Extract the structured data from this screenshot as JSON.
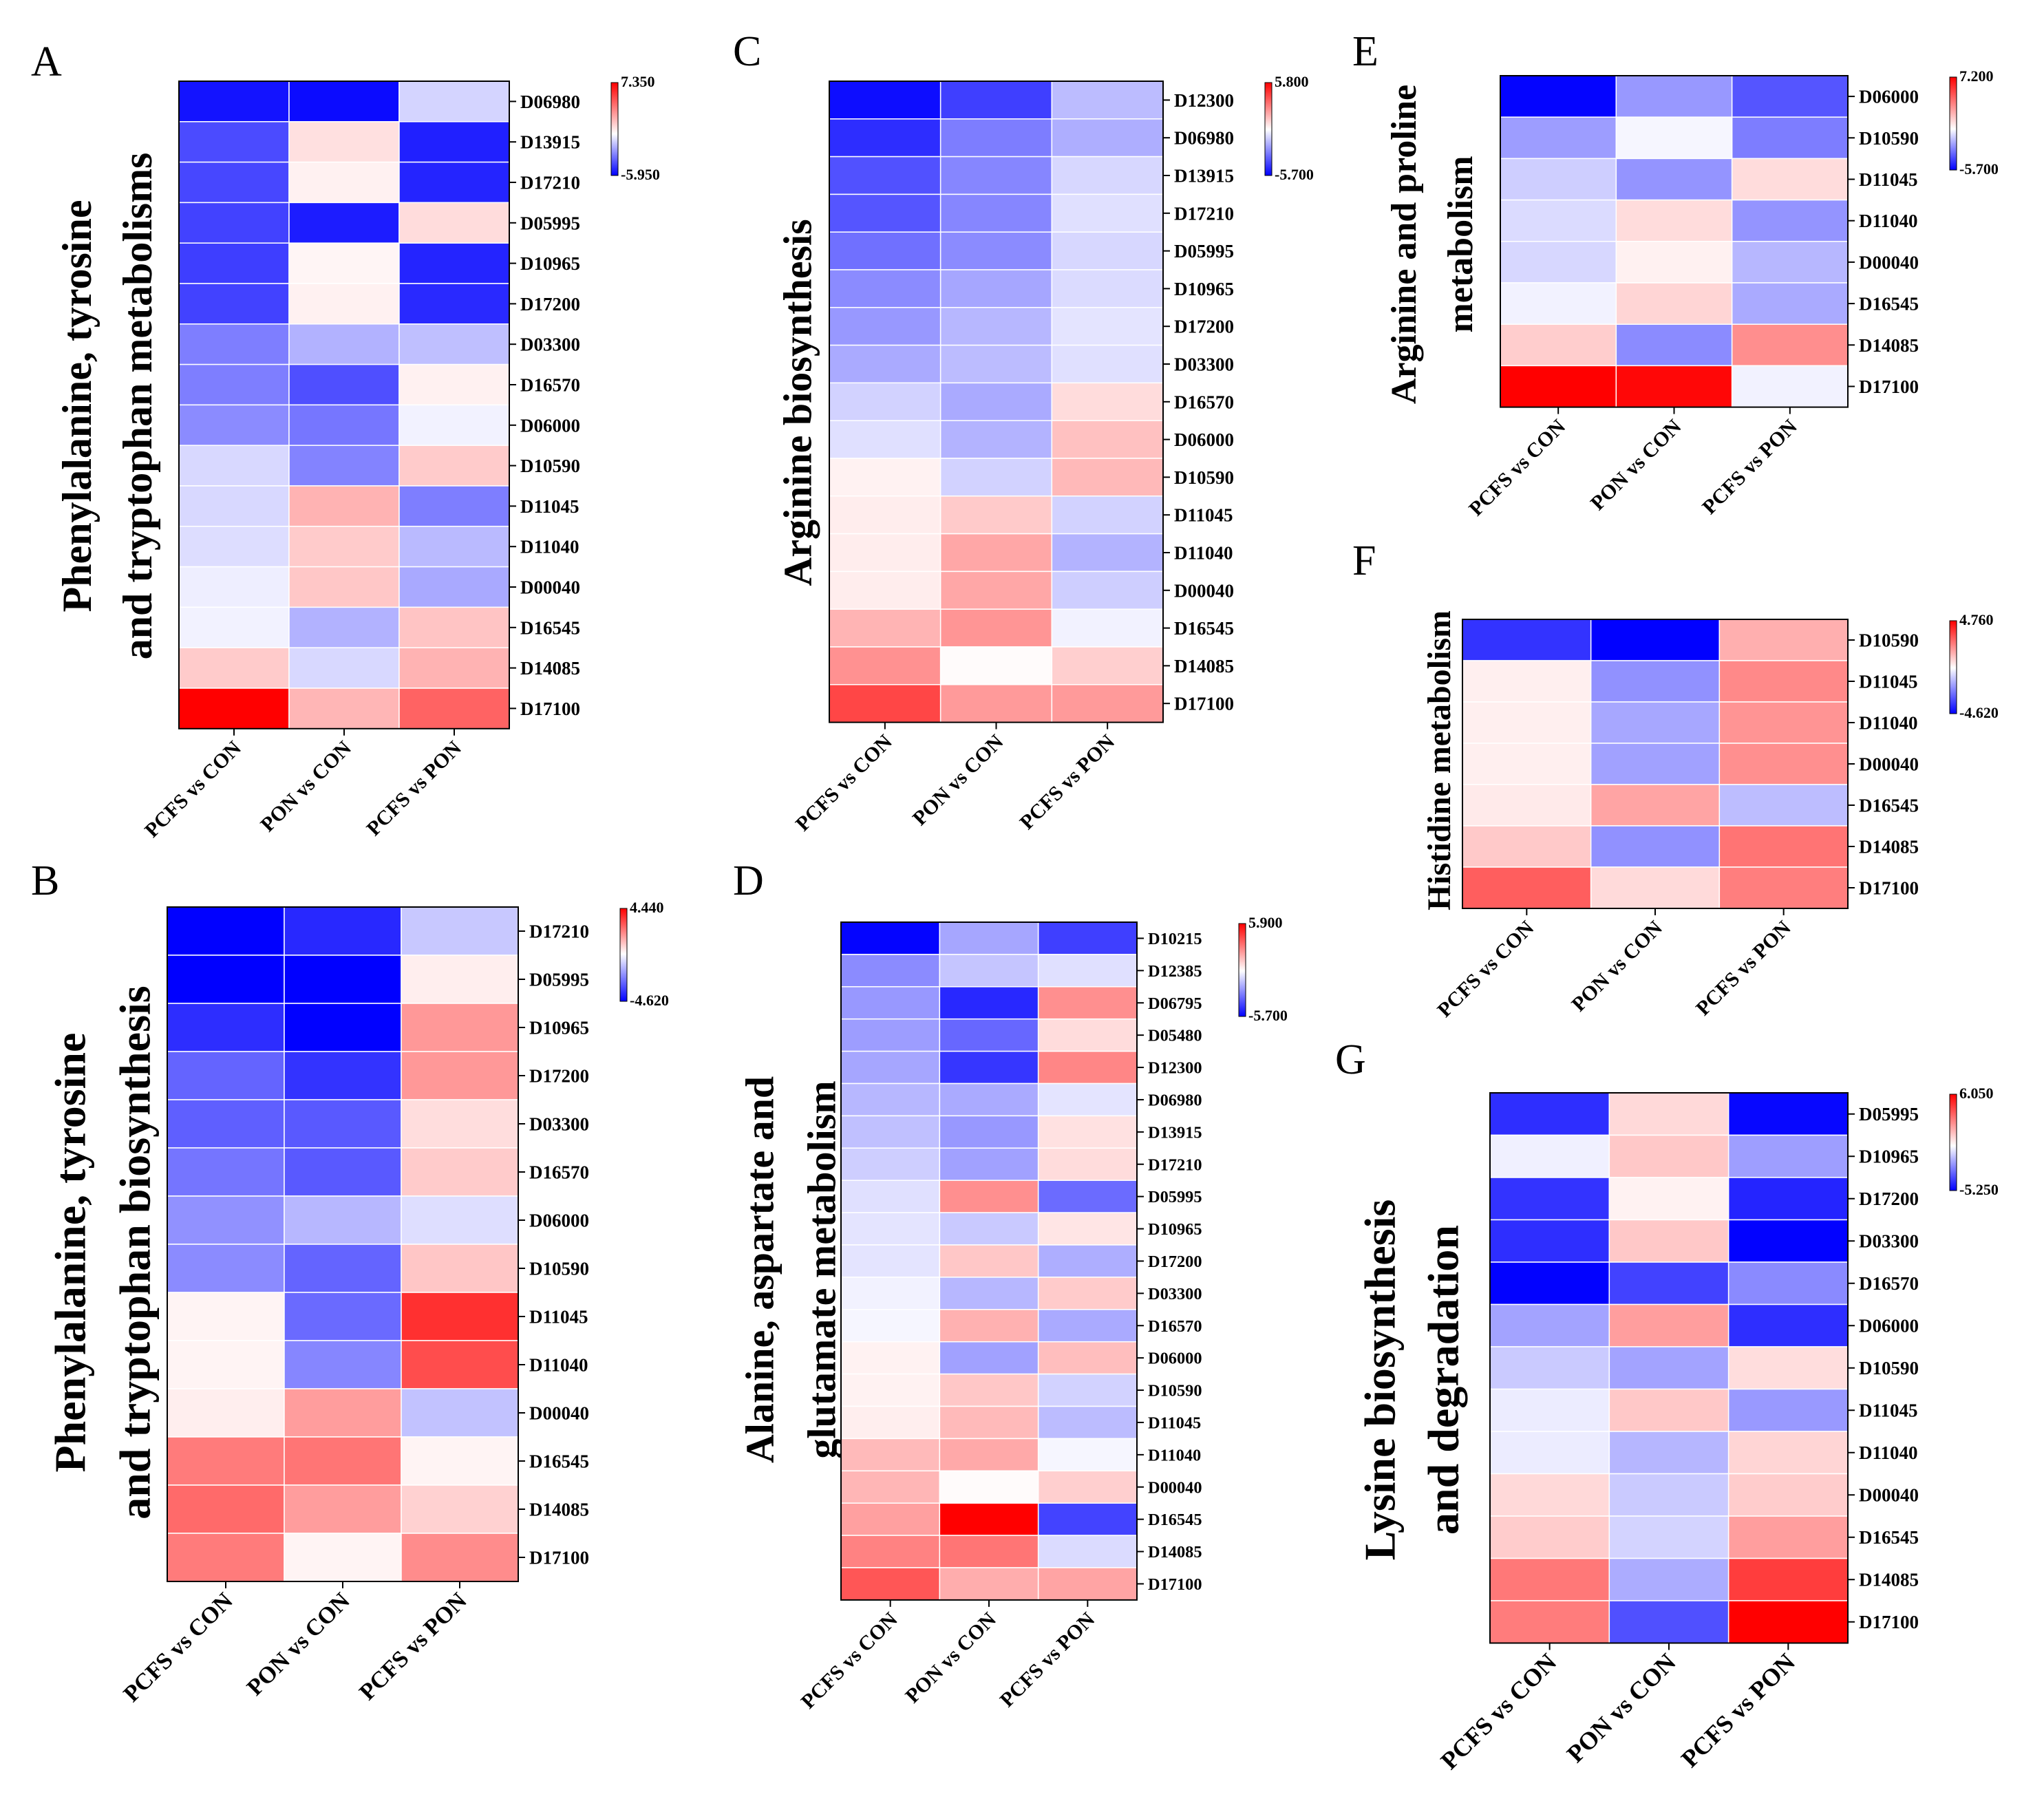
{
  "figure": {
    "note": "Seven heatmap panels comparing metabolite abundance changes"
  },
  "colors": {
    "low": "#0000ff",
    "mid": "#ffffff",
    "high": "#ff0000"
  },
  "chart_data": [
    {
      "type": "heatmap",
      "panel": "A",
      "title": "Phenylalanine, tyrosine and tryptophan metabolisms",
      "title_lines": [
        "Phenylalanine, tyrosine",
        "and tryptophan metabolisms"
      ],
      "columns": [
        "PCFS vs CON",
        "PON vs CON",
        "PCFS vs PON"
      ],
      "rows": [
        "D06980",
        "D13915",
        "D17210",
        "D05995",
        "D10965",
        "D17200",
        "D03300",
        "D16570",
        "D06000",
        "D10590",
        "D11045",
        "D11040",
        "D00040",
        "D16545",
        "D14085",
        "D17100"
      ],
      "values": [
        [
          -5.5,
          -5.7,
          -1.0
        ],
        [
          -4.2,
          0.9,
          -5.2
        ],
        [
          -4.3,
          0.4,
          -5.1
        ],
        [
          -4.4,
          -5.3,
          1.0
        ],
        [
          -4.5,
          0.3,
          -5.1
        ],
        [
          -4.4,
          0.4,
          -5.0
        ],
        [
          -3.0,
          -1.8,
          -1.5
        ],
        [
          -3.0,
          -4.1,
          0.4
        ],
        [
          -2.7,
          -3.2,
          -0.3
        ],
        [
          -0.9,
          -2.9,
          1.5
        ],
        [
          -0.9,
          2.2,
          -3.0
        ],
        [
          -0.8,
          1.5,
          -1.6
        ],
        [
          -0.4,
          1.6,
          -2.0
        ],
        [
          -0.3,
          -1.8,
          1.7
        ],
        [
          1.5,
          -0.9,
          2.2
        ],
        [
          7.35,
          2.1,
          4.5
        ]
      ],
      "colorbar": {
        "max_label": "7.350",
        "min_label": "-5.950",
        "max": 7.35,
        "min": -5.95
      }
    },
    {
      "type": "heatmap",
      "panel": "B",
      "title": "Phenylalanine, tyrosine and tryptophan biosynthesis",
      "title_lines": [
        "Phenylalanine, tyrosine",
        "and tryptophan biosynthesis"
      ],
      "columns": [
        "PCFS vs CON",
        "PON vs CON",
        "PCFS vs PON"
      ],
      "rows": [
        "D17210",
        "D05995",
        "D10965",
        "D17200",
        "D03300",
        "D16570",
        "D06000",
        "D10590",
        "D11045",
        "D11040",
        "D00040",
        "D16545",
        "D14085",
        "D17100"
      ],
      "values": [
        [
          -4.6,
          -3.9,
          -1.0
        ],
        [
          -4.62,
          -4.62,
          0.3
        ],
        [
          -3.8,
          -4.6,
          1.8
        ],
        [
          -2.8,
          -3.7,
          1.8
        ],
        [
          -2.9,
          -3.0,
          0.6
        ],
        [
          -2.5,
          -3.0,
          0.9
        ],
        [
          -2.0,
          -1.3,
          -0.6
        ],
        [
          -2.1,
          -2.8,
          1.0
        ],
        [
          0.2,
          -2.7,
          3.6
        ],
        [
          0.2,
          -2.2,
          3.1
        ],
        [
          0.3,
          1.7,
          -1.1
        ],
        [
          2.3,
          2.4,
          0.2
        ],
        [
          2.6,
          1.7,
          0.8
        ],
        [
          2.3,
          0.2,
          2.0
        ]
      ],
      "colorbar": {
        "max_label": "4.440",
        "min_label": "-4.620",
        "max": 4.44,
        "min": -4.62
      }
    },
    {
      "type": "heatmap",
      "panel": "C",
      "title": "Arginine biosynthesis",
      "title_lines": [
        "Arginine biosynthesis"
      ],
      "columns": [
        "PCFS vs CON",
        "PON vs CON",
        "PCFS vs PON"
      ],
      "rows": [
        "D12300",
        "D06980",
        "D13915",
        "D17210",
        "D05995",
        "D10965",
        "D17200",
        "D03300",
        "D16570",
        "D06000",
        "D10590",
        "D11045",
        "D11040",
        "D00040",
        "D16545",
        "D14085",
        "D17100"
      ],
      "values": [
        [
          -5.4,
          -4.3,
          -1.5
        ],
        [
          -4.7,
          -2.9,
          -1.8
        ],
        [
          -3.9,
          -2.7,
          -0.9
        ],
        [
          -3.8,
          -2.7,
          -0.7
        ],
        [
          -3.2,
          -2.6,
          -0.9
        ],
        [
          -2.6,
          -2.0,
          -0.8
        ],
        [
          -2.3,
          -1.6,
          -0.6
        ],
        [
          -1.9,
          -1.5,
          -0.7
        ],
        [
          -1.0,
          -1.9,
          0.8
        ],
        [
          -0.7,
          -1.7,
          1.4
        ],
        [
          0.3,
          -1.0,
          1.6
        ],
        [
          0.4,
          1.2,
          -1.0
        ],
        [
          0.4,
          2.0,
          -1.7
        ],
        [
          0.4,
          2.0,
          -1.1
        ],
        [
          1.7,
          2.4,
          -0.3
        ],
        [
          2.5,
          0.1,
          1.1
        ],
        [
          4.2,
          2.3,
          2.3
        ]
      ],
      "colorbar": {
        "max_label": "5.800",
        "min_label": "-5.700",
        "max": 5.8,
        "min": -5.7
      }
    },
    {
      "type": "heatmap",
      "panel": "D",
      "title": "Alanine, aspartate and glutamate metabolism",
      "title_lines": [
        "Alanine, aspartate and",
        "glutamate metabolism"
      ],
      "columns": [
        "PCFS vs CON",
        "PON vs CON",
        "PCFS vs PON"
      ],
      "rows": [
        "D10215",
        "D12385",
        "D06795",
        "D05480",
        "D12300",
        "D06980",
        "D13915",
        "D17210",
        "D05995",
        "D10965",
        "D17200",
        "D03300",
        "D16570",
        "D06000",
        "D10590",
        "D11045",
        "D11040",
        "D00040",
        "D16545",
        "D14085",
        "D17100"
      ],
      "values": [
        [
          -5.6,
          -2.0,
          -4.3
        ],
        [
          -2.6,
          -1.3,
          -0.7
        ],
        [
          -2.3,
          -4.8,
          2.6
        ],
        [
          -2.2,
          -3.4,
          0.8
        ],
        [
          -2.0,
          -4.5,
          2.8
        ],
        [
          -1.6,
          -1.9,
          -0.6
        ],
        [
          -1.4,
          -2.3,
          0.7
        ],
        [
          -1.1,
          -2.1,
          0.8
        ],
        [
          -0.7,
          2.6,
          -3.3
        ],
        [
          -0.6,
          -1.2,
          0.6
        ],
        [
          -0.6,
          1.3,
          -1.8
        ],
        [
          -0.3,
          -1.6,
          1.2
        ],
        [
          -0.2,
          1.8,
          -1.9
        ],
        [
          0.3,
          -2.1,
          1.5
        ],
        [
          0.3,
          1.3,
          -1.0
        ],
        [
          0.4,
          1.6,
          -1.5
        ],
        [
          1.6,
          2.0,
          -0.2
        ],
        [
          1.7,
          0.1,
          1.1
        ],
        [
          2.2,
          5.9,
          -4.2
        ],
        [
          2.9,
          3.2,
          -0.8
        ],
        [
          3.9,
          1.9,
          2.1
        ]
      ],
      "colorbar": {
        "max_label": "5.900",
        "min_label": "-5.700",
        "max": 5.9,
        "min": -5.7
      }
    },
    {
      "type": "heatmap",
      "panel": "E",
      "title": "Arginine and proline metabolism",
      "title_lines": [
        "Arginine and proline",
        "metabolism"
      ],
      "columns": [
        "PCFS vs CON",
        "PON vs CON",
        "PCFS vs PON"
      ],
      "rows": [
        "D06000",
        "D10590",
        "D11045",
        "D11040",
        "D00040",
        "D16545",
        "D14085",
        "D17100"
      ],
      "values": [
        [
          -5.6,
          -2.3,
          -3.8
        ],
        [
          -2.2,
          -0.2,
          -2.9
        ],
        [
          -1.1,
          -2.4,
          1.0
        ],
        [
          -0.8,
          1.0,
          -2.4
        ],
        [
          -0.9,
          0.4,
          -1.6
        ],
        [
          -0.3,
          1.2,
          -1.9
        ],
        [
          1.4,
          -2.6,
          3.2
        ],
        [
          7.2,
          7.0,
          -0.3
        ]
      ],
      "colorbar": {
        "max_label": "7.200",
        "min_label": "-5.700",
        "max": 7.2,
        "min": -5.7
      }
    },
    {
      "type": "heatmap",
      "panel": "F",
      "title": "Histidine metabolism",
      "title_lines": [
        "Histidine metabolism"
      ],
      "columns": [
        "PCFS vs CON",
        "PON vs CON",
        "PCFS vs PON"
      ],
      "rows": [
        "D10590",
        "D11045",
        "D11040",
        "D00040",
        "D16545",
        "D14085",
        "D17100"
      ],
      "values": [
        [
          -3.7,
          -4.6,
          1.5
        ],
        [
          0.3,
          -2.0,
          2.2
        ],
        [
          0.3,
          -1.6,
          2.0
        ],
        [
          0.3,
          -1.7,
          2.1
        ],
        [
          0.4,
          1.7,
          -1.2
        ],
        [
          1.0,
          -2.0,
          2.6
        ],
        [
          3.0,
          0.7,
          2.4
        ]
      ],
      "colorbar": {
        "max_label": "4.760",
        "min_label": "-4.620",
        "max": 4.76,
        "min": -4.62
      }
    },
    {
      "type": "heatmap",
      "panel": "G",
      "title": "Lysine biosynthesis and degradation",
      "title_lines": [
        "Lysine biosynthesis",
        "and degradation"
      ],
      "columns": [
        "PCFS vs CON",
        "PON vs CON",
        "PCFS vs PON"
      ],
      "rows": [
        "D05995",
        "D10965",
        "D17200",
        "D03300",
        "D16570",
        "D06000",
        "D10590",
        "D11045",
        "D11040",
        "D00040",
        "D16545",
        "D14085",
        "D17100"
      ],
      "values": [
        [
          -4.3,
          0.9,
          -5.1
        ],
        [
          -0.3,
          1.3,
          -2.0
        ],
        [
          -4.2,
          0.3,
          -4.5
        ],
        [
          -4.3,
          1.3,
          -5.2
        ],
        [
          -5.2,
          -3.9,
          -2.4
        ],
        [
          -1.9,
          2.3,
          -4.3
        ],
        [
          -1.1,
          -1.9,
          0.8
        ],
        [
          -0.4,
          1.3,
          -2.1
        ],
        [
          -0.4,
          -1.5,
          1.0
        ],
        [
          0.9,
          -1.1,
          1.2
        ],
        [
          1.2,
          -0.9,
          2.3
        ],
        [
          3.2,
          -1.7,
          4.6
        ],
        [
          3.1,
          -3.6,
          6.05
        ]
      ],
      "colorbar": {
        "max_label": "6.050",
        "min_label": "-5.250",
        "max": 6.05,
        "min": -5.25
      }
    }
  ]
}
